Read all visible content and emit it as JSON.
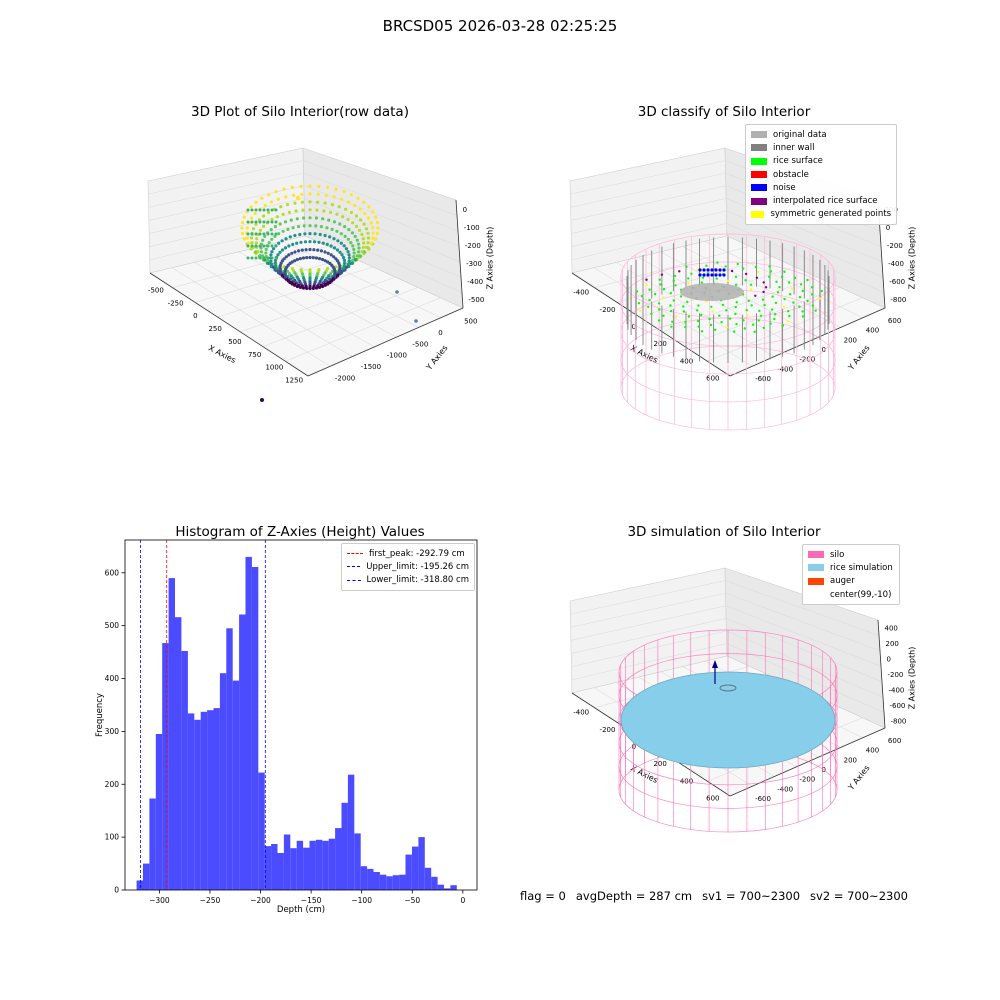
{
  "suptitle": "BRCSD05 2026-03-28 02:25:25",
  "panels": {
    "raw": {
      "title": "3D Plot of Silo Interior(row data)",
      "xlabel": "X Axies",
      "ylabel": "Y Axies",
      "zlabel": "Z Axies (Depth)",
      "xticks": [
        "-500",
        "-250",
        "0",
        "250",
        "500",
        "750",
        "1000",
        "1250"
      ],
      "yticks": [
        "-2000",
        "-1500",
        "-1000",
        "-500",
        "0",
        "500"
      ],
      "zticks": [
        "-500",
        "-400",
        "-300",
        "-200",
        "-100",
        "0"
      ]
    },
    "classify": {
      "title": "3D classify of Silo Interior",
      "xlabel": "X Axies",
      "ylabel": "Y Axies",
      "zlabel": "Z Axies (Depth)",
      "xticks": [
        "-400",
        "-200",
        "0",
        "200",
        "400",
        "600"
      ],
      "yticks": [
        "-600",
        "-400",
        "-200",
        "0",
        "200",
        "400",
        "600"
      ],
      "zticks": [
        "-800",
        "-600",
        "-400",
        "-200",
        "0",
        "200"
      ],
      "legend": [
        {
          "label": "original data",
          "color": "#b0b0b0"
        },
        {
          "label": "inner wall",
          "color": "#808080"
        },
        {
          "label": "rice surface",
          "color": "#00ff00"
        },
        {
          "label": "obstacle",
          "color": "#ff0000"
        },
        {
          "label": "noise",
          "color": "#0000ff"
        },
        {
          "label": "interpolated rice surface",
          "color": "#800080"
        },
        {
          "label": "symmetric generated points",
          "color": "#ffff00"
        }
      ]
    },
    "simulation": {
      "title": "3D simulation of Silo Interior",
      "xlabel": "X Axies",
      "ylabel": "Y Axies",
      "zlabel": "Z Axies (Depth)",
      "xticks": [
        "-400",
        "-200",
        "0",
        "200",
        "400",
        "600"
      ],
      "yticks": [
        "-600",
        "-400",
        "-200",
        "0",
        "200",
        "400",
        "600"
      ],
      "zticks": [
        "-800",
        "-600",
        "-400",
        "-200",
        "0",
        "200",
        "400"
      ],
      "legend": [
        {
          "label": "silo",
          "color": "#ff69b4"
        },
        {
          "label": "rice simulation",
          "color": "#87ceeb"
        },
        {
          "label": "auger",
          "color": "#ff4500"
        },
        {
          "label": "center(99,-10)",
          "color": "#ffffff"
        }
      ]
    }
  },
  "footer": {
    "flag": "flag = 0",
    "avg_depth": "avgDepth = 287 cm",
    "sv1": "sv1 = 700~2300",
    "sv2": "sv2 = 700~2300"
  },
  "colors": {
    "bars": "#4b4bff",
    "first_peak": "#ff0000",
    "limits": "#0000ff"
  },
  "chart_data": [
    {
      "type": "bar",
      "title": "Histogram of Z-Axies (Height) Values",
      "xlabel": "Depth (cm)",
      "ylabel": "Frequency",
      "xlim": [
        -334,
        14
      ],
      "ylim": [
        0,
        662
      ],
      "xticks": [
        -300,
        -250,
        -200,
        -150,
        -100,
        -50,
        0
      ],
      "yticks": [
        0,
        100,
        200,
        300,
        400,
        500,
        600
      ],
      "bin_start": -322.5,
      "bin_width": 6.33,
      "values": [
        18,
        50,
        173,
        295,
        467,
        590,
        516,
        452,
        334,
        322,
        337,
        340,
        344,
        410,
        495,
        396,
        521,
        630,
        611,
        222,
        83,
        87,
        70,
        105,
        79,
        93,
        80,
        93,
        95,
        93,
        97,
        117,
        165,
        218,
        107,
        45,
        40,
        34,
        29,
        26,
        28,
        29,
        67,
        82,
        100,
        42,
        25,
        10,
        3,
        9
      ],
      "lines": [
        {
          "name": "first_peak: -292.79 cm",
          "x": -292.79,
          "color": "#ff0000"
        },
        {
          "name": "Upper_limit: -195.26 cm",
          "x": -195.26,
          "color": "#0000ff"
        },
        {
          "name": "Lower_limit: -318.80 cm",
          "x": -318.8,
          "color": "#0000ff"
        }
      ],
      "legend_position": "upper right",
      "grid": false
    }
  ]
}
